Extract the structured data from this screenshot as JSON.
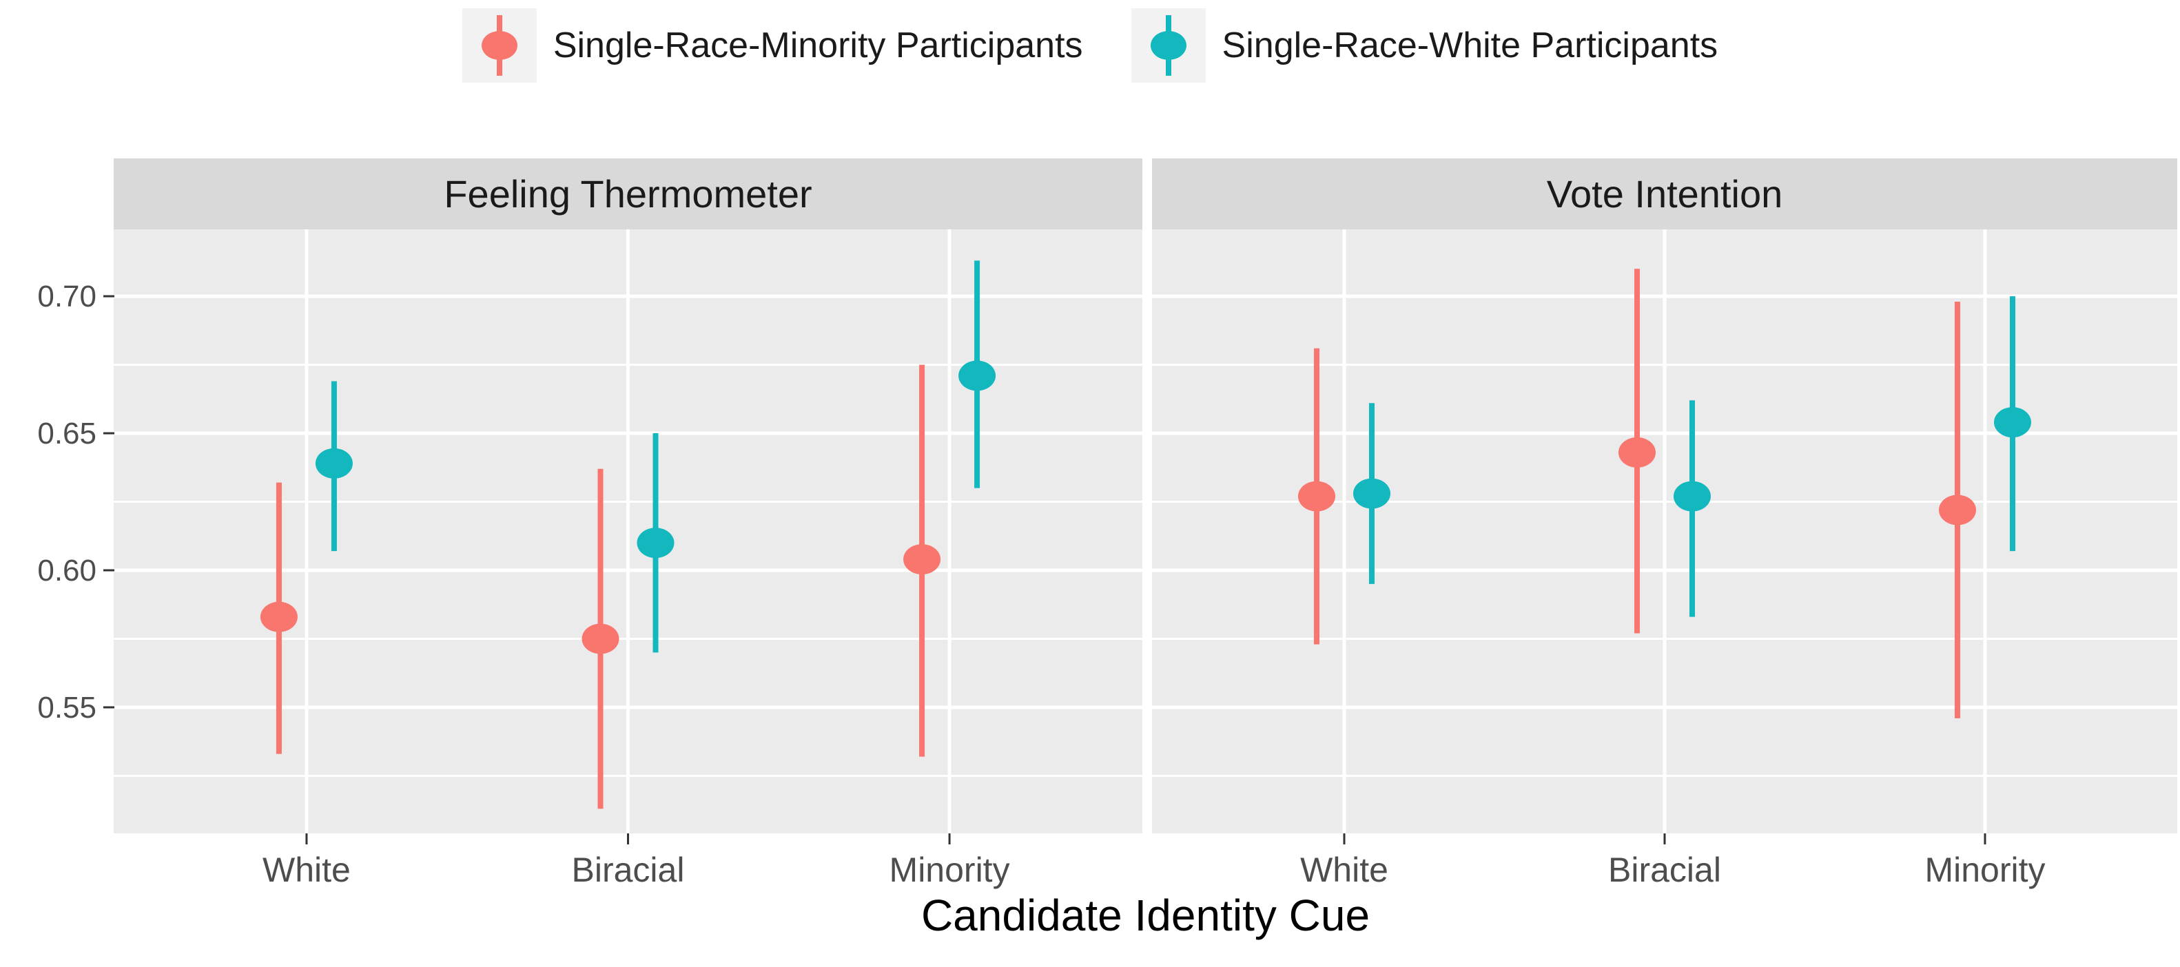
{
  "legend": {
    "items": [
      {
        "label": "Single-Race-Minority Participants",
        "color": "#F8766D"
      },
      {
        "label": "Single-Race-White Participants",
        "color": "#12B8BE"
      }
    ]
  },
  "x_axis": {
    "title": "Candidate Identity Cue",
    "categories": [
      "White",
      "Biracial",
      "Minority"
    ]
  },
  "y_axis": {
    "domain": [
      0.504,
      0.7244
    ],
    "ticks": [
      0.7,
      0.65,
      0.6,
      0.55
    ],
    "tick_labels": [
      "0.70",
      "0.65",
      "0.60",
      "0.55"
    ],
    "minor_ticks": [
      0.675,
      0.625,
      0.575,
      0.525
    ]
  },
  "chart_data": {
    "type": "pointrange",
    "title": "",
    "xlabel": "Candidate Identity Cue",
    "ylabel": "",
    "ylim": [
      0.504,
      0.7244
    ],
    "grid": "on",
    "legend_position": "top",
    "style": {
      "panel_bg": "#EBEBEB",
      "strip_bg": "#D9D9D9",
      "grid_color": "#FFFFFF",
      "tick_color": "#333333",
      "page_bg": "#FFFFFF"
    },
    "categories": [
      "White",
      "Biracial",
      "Minority"
    ],
    "facets": [
      {
        "title": "Feeling Thermometer",
        "series": [
          {
            "name": "Single-Race-Minority Participants",
            "color": "#F8766D",
            "points": [
              {
                "category": "White",
                "y": 0.583,
                "lo": 0.533,
                "hi": 0.632
              },
              {
                "category": "Biracial",
                "y": 0.575,
                "lo": 0.513,
                "hi": 0.637
              },
              {
                "category": "Minority",
                "y": 0.604,
                "lo": 0.532,
                "hi": 0.675
              }
            ]
          },
          {
            "name": "Single-Race-White Participants",
            "color": "#12B8BE",
            "points": [
              {
                "category": "White",
                "y": 0.639,
                "lo": 0.607,
                "hi": 0.669
              },
              {
                "category": "Biracial",
                "y": 0.61,
                "lo": 0.57,
                "hi": 0.65
              },
              {
                "category": "Minority",
                "y": 0.671,
                "lo": 0.63,
                "hi": 0.713
              }
            ]
          }
        ]
      },
      {
        "title": "Vote Intention",
        "series": [
          {
            "name": "Single-Race-Minority Participants",
            "color": "#F8766D",
            "points": [
              {
                "category": "White",
                "y": 0.627,
                "lo": 0.573,
                "hi": 0.681
              },
              {
                "category": "Biracial",
                "y": 0.643,
                "lo": 0.577,
                "hi": 0.71
              },
              {
                "category": "Minority",
                "y": 0.622,
                "lo": 0.546,
                "hi": 0.698
              }
            ]
          },
          {
            "name": "Single-Race-White Participants",
            "color": "#12B8BE",
            "points": [
              {
                "category": "White",
                "y": 0.628,
                "lo": 0.595,
                "hi": 0.661
              },
              {
                "category": "Biracial",
                "y": 0.627,
                "lo": 0.583,
                "hi": 0.662
              },
              {
                "category": "Minority",
                "y": 0.654,
                "lo": 0.607,
                "hi": 0.7
              }
            ]
          }
        ]
      }
    ]
  }
}
